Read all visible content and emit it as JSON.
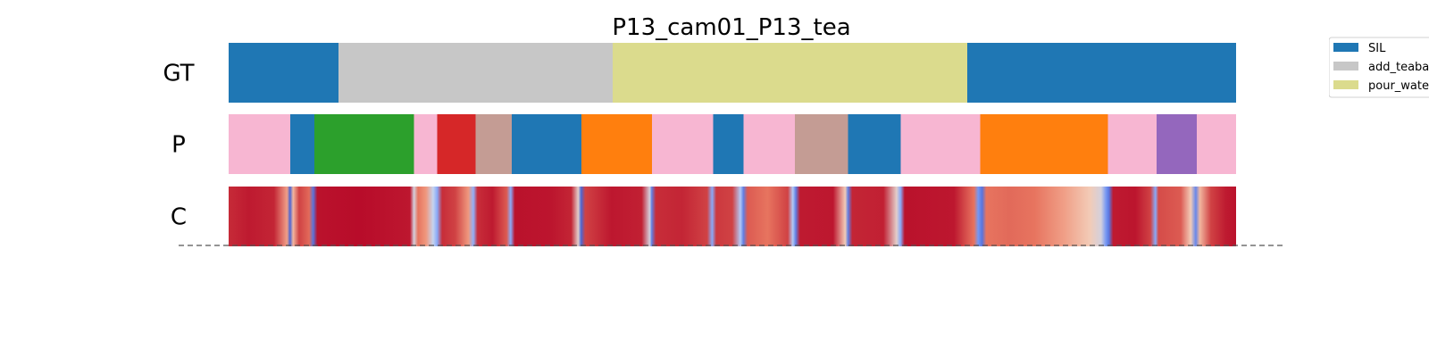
{
  "chart_data": {
    "type": "segmentation-timeline",
    "title": "P13_cam01_P13_tea",
    "x_range": [
      0,
      1
    ],
    "rows": [
      {
        "label": "GT",
        "segments": [
          {
            "start": 0.0,
            "end": 0.109,
            "color": "#1f77b4"
          },
          {
            "start": 0.109,
            "end": 0.381,
            "color": "#c7c7c7"
          },
          {
            "start": 0.381,
            "end": 0.733,
            "color": "#dbdb8d"
          },
          {
            "start": 0.733,
            "end": 1.0,
            "color": "#1f77b4"
          }
        ]
      },
      {
        "label": "P",
        "segments": [
          {
            "start": 0.0,
            "end": 0.061,
            "color": "#f7b6d2"
          },
          {
            "start": 0.061,
            "end": 0.085,
            "color": "#1f77b4"
          },
          {
            "start": 0.085,
            "end": 0.184,
            "color": "#2ca02c"
          },
          {
            "start": 0.184,
            "end": 0.207,
            "color": "#f7b6d2"
          },
          {
            "start": 0.207,
            "end": 0.245,
            "color": "#d62728"
          },
          {
            "start": 0.245,
            "end": 0.281,
            "color": "#c49c94"
          },
          {
            "start": 0.281,
            "end": 0.35,
            "color": "#1f77b4"
          },
          {
            "start": 0.35,
            "end": 0.42,
            "color": "#ff7f0e"
          },
          {
            "start": 0.42,
            "end": 0.481,
            "color": "#f7b6d2"
          },
          {
            "start": 0.481,
            "end": 0.511,
            "color": "#1f77b4"
          },
          {
            "start": 0.511,
            "end": 0.562,
            "color": "#f7b6d2"
          },
          {
            "start": 0.562,
            "end": 0.615,
            "color": "#c49c94"
          },
          {
            "start": 0.615,
            "end": 0.667,
            "color": "#1f77b4"
          },
          {
            "start": 0.667,
            "end": 0.746,
            "color": "#f7b6d2"
          },
          {
            "start": 0.746,
            "end": 0.873,
            "color": "#ff7f0e"
          },
          {
            "start": 0.873,
            "end": 0.921,
            "color": "#f7b6d2"
          },
          {
            "start": 0.921,
            "end": 0.961,
            "color": "#9467bd"
          },
          {
            "start": 0.961,
            "end": 1.0,
            "color": "#f7b6d2"
          }
        ]
      },
      {
        "label": "C",
        "colormap": [
          "#3b4cc0",
          "#7b9ff9",
          "#c0d4f5",
          "#f2cbb7",
          "#ee8468",
          "#c9323b",
          "#b40426"
        ],
        "values": [
          [
            0.0,
            0.86
          ],
          [
            0.02,
            0.92
          ],
          [
            0.045,
            0.88
          ],
          [
            0.058,
            0.6
          ],
          [
            0.061,
            0.05
          ],
          [
            0.064,
            0.55
          ],
          [
            0.07,
            0.8
          ],
          [
            0.08,
            0.72
          ],
          [
            0.084,
            0.08
          ],
          [
            0.088,
            0.95
          ],
          [
            0.13,
            0.97
          ],
          [
            0.18,
            0.93
          ],
          [
            0.184,
            0.4
          ],
          [
            0.188,
            0.7
          ],
          [
            0.196,
            0.62
          ],
          [
            0.203,
            0.35
          ],
          [
            0.207,
            0.2
          ],
          [
            0.212,
            0.85
          ],
          [
            0.225,
            0.8
          ],
          [
            0.238,
            0.62
          ],
          [
            0.243,
            0.22
          ],
          [
            0.247,
            0.85
          ],
          [
            0.262,
            0.92
          ],
          [
            0.276,
            0.75
          ],
          [
            0.28,
            0.2
          ],
          [
            0.284,
            0.95
          ],
          [
            0.32,
            0.94
          ],
          [
            0.34,
            0.88
          ],
          [
            0.347,
            0.45
          ],
          [
            0.35,
            0.05
          ],
          [
            0.354,
            0.8
          ],
          [
            0.38,
            0.93
          ],
          [
            0.41,
            0.9
          ],
          [
            0.418,
            0.4
          ],
          [
            0.42,
            0.1
          ],
          [
            0.424,
            0.85
          ],
          [
            0.45,
            0.88
          ],
          [
            0.475,
            0.8
          ],
          [
            0.48,
            0.2
          ],
          [
            0.484,
            0.82
          ],
          [
            0.5,
            0.8
          ],
          [
            0.508,
            0.3
          ],
          [
            0.511,
            0.1
          ],
          [
            0.515,
            0.75
          ],
          [
            0.535,
            0.7
          ],
          [
            0.555,
            0.8
          ],
          [
            0.56,
            0.3
          ],
          [
            0.563,
            0.1
          ],
          [
            0.567,
            0.92
          ],
          [
            0.6,
            0.93
          ],
          [
            0.612,
            0.5
          ],
          [
            0.615,
            0.1
          ],
          [
            0.619,
            0.88
          ],
          [
            0.65,
            0.9
          ],
          [
            0.663,
            0.45
          ],
          [
            0.667,
            0.2
          ],
          [
            0.671,
            0.95
          ],
          [
            0.72,
            0.93
          ],
          [
            0.74,
            0.7
          ],
          [
            0.744,
            0.15
          ],
          [
            0.748,
            0.08
          ],
          [
            0.752,
            0.7
          ],
          [
            0.775,
            0.72
          ],
          [
            0.8,
            0.7
          ],
          [
            0.83,
            0.6
          ],
          [
            0.855,
            0.5
          ],
          [
            0.866,
            0.4
          ],
          [
            0.871,
            0.15
          ],
          [
            0.874,
            0.08
          ],
          [
            0.878,
            0.92
          ],
          [
            0.9,
            0.94
          ],
          [
            0.915,
            0.8
          ],
          [
            0.92,
            0.2
          ],
          [
            0.923,
            0.78
          ],
          [
            0.945,
            0.75
          ],
          [
            0.955,
            0.5
          ],
          [
            0.96,
            0.12
          ],
          [
            0.964,
            0.55
          ],
          [
            0.975,
            0.8
          ],
          [
            0.99,
            0.92
          ],
          [
            1.0,
            0.95
          ]
        ]
      }
    ],
    "legend": {
      "placement": "top-right",
      "entries": [
        {
          "label": "SIL",
          "color": "#1f77b4"
        },
        {
          "label": "add_teaba",
          "color": "#c7c7c7"
        },
        {
          "label": "pour_wate",
          "color": "#dbdb8d"
        }
      ]
    }
  }
}
